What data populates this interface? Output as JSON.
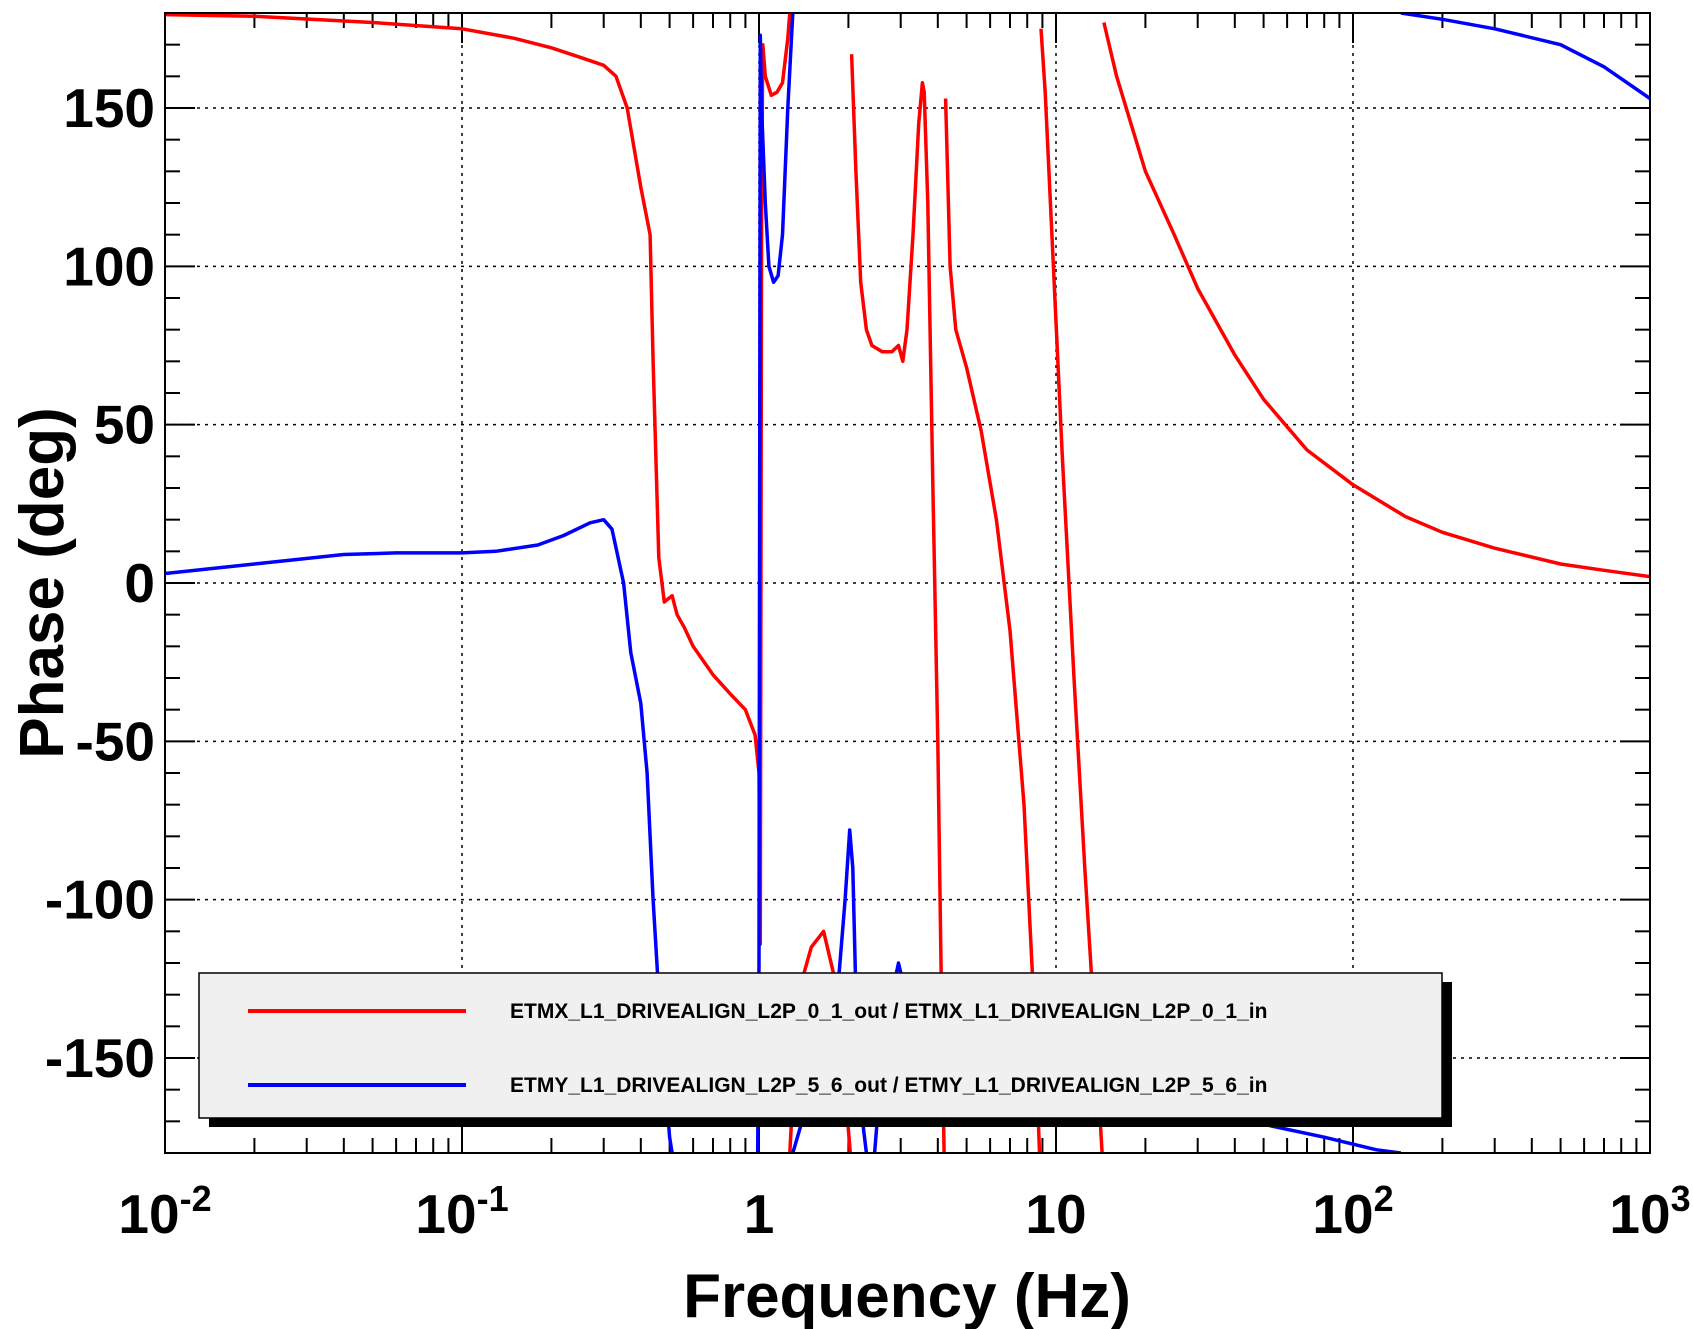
{
  "chart_data": {
    "type": "line",
    "xlabel": "Frequency (Hz)",
    "ylabel": "Phase (deg)",
    "xscale": "log",
    "xlim": [
      0.01,
      1000
    ],
    "ylim": [
      -180,
      180
    ],
    "grid": true,
    "legend_position": "bottom-center",
    "y_ticks": [
      {
        "value": 150,
        "label": "150"
      },
      {
        "value": 100,
        "label": "100"
      },
      {
        "value": 50,
        "label": "50"
      },
      {
        "value": 0,
        "label": "0"
      },
      {
        "value": -50,
        "label": "-50"
      },
      {
        "value": -100,
        "label": "-100"
      },
      {
        "value": -150,
        "label": "-150"
      }
    ],
    "x_ticks": [
      {
        "value": 0.01,
        "base": "10",
        "exp": "-2"
      },
      {
        "value": 0.1,
        "base": "10",
        "exp": "-1"
      },
      {
        "value": 1,
        "base": "1",
        "exp": ""
      },
      {
        "value": 10,
        "base": "10",
        "exp": ""
      },
      {
        "value": 100,
        "base": "10",
        "exp": "2"
      },
      {
        "value": 1000,
        "base": "10",
        "exp": "3"
      }
    ],
    "series": [
      {
        "name": "ETMX_L1_DRIVEALIGN_L2P_0_1_out / ETMX_L1_DRIVEALIGN_L2P_0_1_in",
        "color": "#ff0000",
        "points": [
          [
            0.01,
            179.5
          ],
          [
            0.02,
            179
          ],
          [
            0.05,
            177
          ],
          [
            0.1,
            175
          ],
          [
            0.15,
            172
          ],
          [
            0.2,
            169
          ],
          [
            0.25,
            166
          ],
          [
            0.3,
            163.5
          ],
          [
            0.33,
            160
          ],
          [
            0.36,
            150
          ],
          [
            0.4,
            125
          ],
          [
            0.43,
            110
          ],
          [
            0.44,
            70
          ],
          [
            0.46,
            8
          ],
          [
            0.48,
            -6
          ],
          [
            0.51,
            -4
          ],
          [
            0.53,
            -10
          ],
          [
            0.56,
            -14
          ],
          [
            0.6,
            -20
          ],
          [
            0.7,
            -29
          ],
          [
            0.8,
            -35
          ],
          [
            0.9,
            -40
          ],
          [
            0.97,
            -48
          ],
          [
            1.0,
            -60
          ],
          [
            1.01,
            -114
          ],
          [
            1.02,
            120
          ],
          [
            1.03,
            170
          ],
          [
            1.05,
            160
          ],
          [
            1.1,
            154
          ],
          [
            1.15,
            155
          ],
          [
            1.2,
            158
          ],
          [
            1.25,
            172
          ],
          [
            1.27,
            180
          ]
        ]
      },
      {
        "name": "",
        "color": "#ff0000",
        "points": [
          [
            1.27,
            -180
          ],
          [
            1.32,
            -150
          ],
          [
            1.4,
            -125
          ],
          [
            1.5,
            -115
          ],
          [
            1.65,
            -110
          ],
          [
            1.8,
            -125
          ],
          [
            1.95,
            -160
          ],
          [
            2.03,
            -180
          ]
        ]
      },
      {
        "name": "",
        "color": "#ff0000",
        "points": [
          [
            2.05,
            167
          ],
          [
            2.12,
            130
          ],
          [
            2.2,
            95
          ],
          [
            2.3,
            80
          ],
          [
            2.4,
            75
          ],
          [
            2.6,
            73
          ],
          [
            2.8,
            73
          ],
          [
            2.95,
            75
          ],
          [
            3.05,
            70
          ],
          [
            3.15,
            80
          ],
          [
            3.3,
            110
          ],
          [
            3.45,
            145
          ],
          [
            3.55,
            158
          ],
          [
            3.6,
            155
          ],
          [
            3.7,
            120
          ],
          [
            3.85,
            30
          ],
          [
            4.0,
            -50
          ],
          [
            4.1,
            -120
          ],
          [
            4.2,
            -180
          ]
        ]
      },
      {
        "name": "",
        "color": "#ff0000",
        "points": [
          [
            4.25,
            153
          ],
          [
            4.4,
            100
          ],
          [
            4.6,
            80
          ],
          [
            5.0,
            68
          ],
          [
            5.6,
            48
          ],
          [
            6.3,
            20
          ],
          [
            7.0,
            -15
          ],
          [
            7.8,
            -70
          ],
          [
            8.5,
            -140
          ],
          [
            8.8,
            -180
          ]
        ]
      },
      {
        "name": "",
        "color": "#ff0000",
        "points": [
          [
            8.9,
            175
          ],
          [
            9.2,
            155
          ],
          [
            9.8,
            100
          ],
          [
            10.5,
            40
          ],
          [
            11.5,
            -30
          ],
          [
            12.5,
            -90
          ],
          [
            13.5,
            -140
          ],
          [
            14.3,
            -180
          ]
        ]
      },
      {
        "name": "",
        "color": "#ff0000",
        "points": [
          [
            14.5,
            177
          ],
          [
            16,
            160
          ],
          [
            20,
            130
          ],
          [
            25,
            110
          ],
          [
            30,
            93
          ],
          [
            40,
            72
          ],
          [
            50,
            58
          ],
          [
            70,
            42
          ],
          [
            100,
            31
          ],
          [
            150,
            21
          ],
          [
            200,
            16
          ],
          [
            300,
            11
          ],
          [
            500,
            6
          ],
          [
            700,
            4
          ],
          [
            1000,
            2
          ]
        ]
      },
      {
        "name": "ETMY_L1_DRIVEALIGN_L2P_5_6_out / ETMY_L1_DRIVEALIGN_L2P_5_6_in",
        "color": "#0000ff",
        "points": [
          [
            0.01,
            3
          ],
          [
            0.02,
            6
          ],
          [
            0.04,
            9
          ],
          [
            0.06,
            9.5
          ],
          [
            0.1,
            9.5
          ],
          [
            0.13,
            10
          ],
          [
            0.18,
            12
          ],
          [
            0.22,
            15
          ],
          [
            0.27,
            19
          ],
          [
            0.3,
            20
          ],
          [
            0.32,
            17
          ],
          [
            0.35,
            0
          ],
          [
            0.37,
            -22
          ],
          [
            0.4,
            -38
          ],
          [
            0.42,
            -60
          ],
          [
            0.44,
            -100
          ],
          [
            0.46,
            -130
          ],
          [
            0.5,
            -175
          ],
          [
            0.51,
            -180
          ]
        ]
      },
      {
        "name": "",
        "color": "#0000ff",
        "points": [
          [
            0.99,
            -180
          ],
          [
            1.0,
            -120
          ],
          [
            1.01,
            173
          ],
          [
            1.02,
            150
          ],
          [
            1.05,
            120
          ],
          [
            1.08,
            100
          ],
          [
            1.12,
            95
          ],
          [
            1.16,
            97
          ],
          [
            1.2,
            110
          ],
          [
            1.25,
            150
          ],
          [
            1.3,
            180
          ]
        ]
      },
      {
        "name": "",
        "color": "#0000ff",
        "points": [
          [
            1.3,
            -180
          ],
          [
            1.5,
            -160
          ],
          [
            1.8,
            -140
          ],
          [
            1.95,
            -100
          ],
          [
            2.02,
            -78
          ],
          [
            2.07,
            -90
          ],
          [
            2.12,
            -130
          ],
          [
            2.2,
            -165
          ],
          [
            2.3,
            -180
          ]
        ]
      },
      {
        "name": "",
        "color": "#0000ff",
        "points": [
          [
            2.45,
            -180
          ],
          [
            2.6,
            -150
          ],
          [
            2.8,
            -130
          ],
          [
            2.95,
            -120
          ],
          [
            3.0,
            -123
          ],
          [
            3.2,
            -132
          ],
          [
            4,
            -140
          ],
          [
            6,
            -148
          ],
          [
            10,
            -155
          ],
          [
            20,
            -162
          ],
          [
            40,
            -169
          ],
          [
            80,
            -175
          ],
          [
            120,
            -179
          ],
          [
            145,
            -180
          ]
        ]
      },
      {
        "name": "",
        "color": "#0000ff",
        "points": [
          [
            145,
            180
          ],
          [
            200,
            178
          ],
          [
            300,
            175
          ],
          [
            500,
            170
          ],
          [
            700,
            163
          ],
          [
            1000,
            153
          ]
        ]
      }
    ]
  },
  "legend": {
    "entries": [
      {
        "label": "ETMX_L1_DRIVEALIGN_L2P_0_1_out / ETMX_L1_DRIVEALIGN_L2P_0_1_in",
        "color": "#ff0000"
      },
      {
        "label": "ETMY_L1_DRIVEALIGN_L2P_5_6_out / ETMY_L1_DRIVEALIGN_L2P_5_6_in",
        "color": "#0000ff"
      }
    ]
  }
}
